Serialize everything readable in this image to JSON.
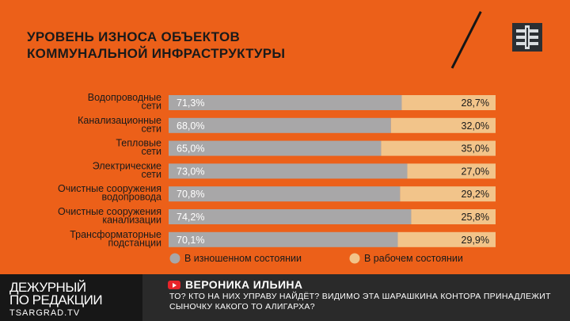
{
  "chart_data": {
    "type": "bar",
    "stacked": true,
    "orientation": "horizontal",
    "title_lines": [
      "УРОВЕНЬ ИЗНОСА ОБЪЕКТОВ",
      "КОММУНАЛЬНОЙ ИНФРАСТРУКТУРЫ"
    ],
    "categories": [
      [
        "Водопроводные",
        "сети"
      ],
      [
        "Канализационные",
        "сети"
      ],
      [
        "Тепловые",
        "сети"
      ],
      [
        "Электрические",
        "сети"
      ],
      [
        "Очистные сооружения",
        "водопровода"
      ],
      [
        "Очистные сооружения",
        "канализации"
      ],
      [
        "Трансформаторные",
        "подстанции"
      ]
    ],
    "series": [
      {
        "name": "В изношенном состоянии",
        "color": "#a8a7a8",
        "values": [
          71.3,
          68.0,
          65.0,
          73.0,
          70.8,
          74.2,
          70.1
        ],
        "labels": [
          "71,3%",
          "68,0%",
          "65,0%",
          "73,0%",
          "70,8%",
          "74,2%",
          "70,1%"
        ]
      },
      {
        "name": "В рабочем состоянии",
        "color": "#f2c48a",
        "values": [
          28.7,
          32.0,
          35.0,
          27.0,
          29.2,
          25.8,
          29.9
        ],
        "labels": [
          "28,7%",
          "32,0%",
          "35,0%",
          "27,0%",
          "29,2%",
          "25,8%",
          "29,9%"
        ]
      }
    ],
    "xlim": [
      0,
      100
    ],
    "legend_position": "bottom",
    "grid": false
  },
  "lower_third": {
    "show_line1": "Дежурный",
    "show_line2": "по редакции",
    "show_site": "TSARGRAD.TV",
    "author": "ВЕРОНИКА ИЛЬИНА",
    "message": "ТО? КТО НА НИХ УПРАВУ НАЙДЁТ? ВИДИМО ЭТА ШАРАШКИНА КОНТОРА ПРИНАДЛЕЖИТ СЫНОЧКУ КАКОГО ТО АЛИГАРХА?"
  },
  "colors": {
    "background": "#ec6019",
    "text_dark": "#1a1a1a"
  },
  "icons": {
    "channel_logo": "tsargrad-cross-logo",
    "message_source": "youtube-icon"
  }
}
